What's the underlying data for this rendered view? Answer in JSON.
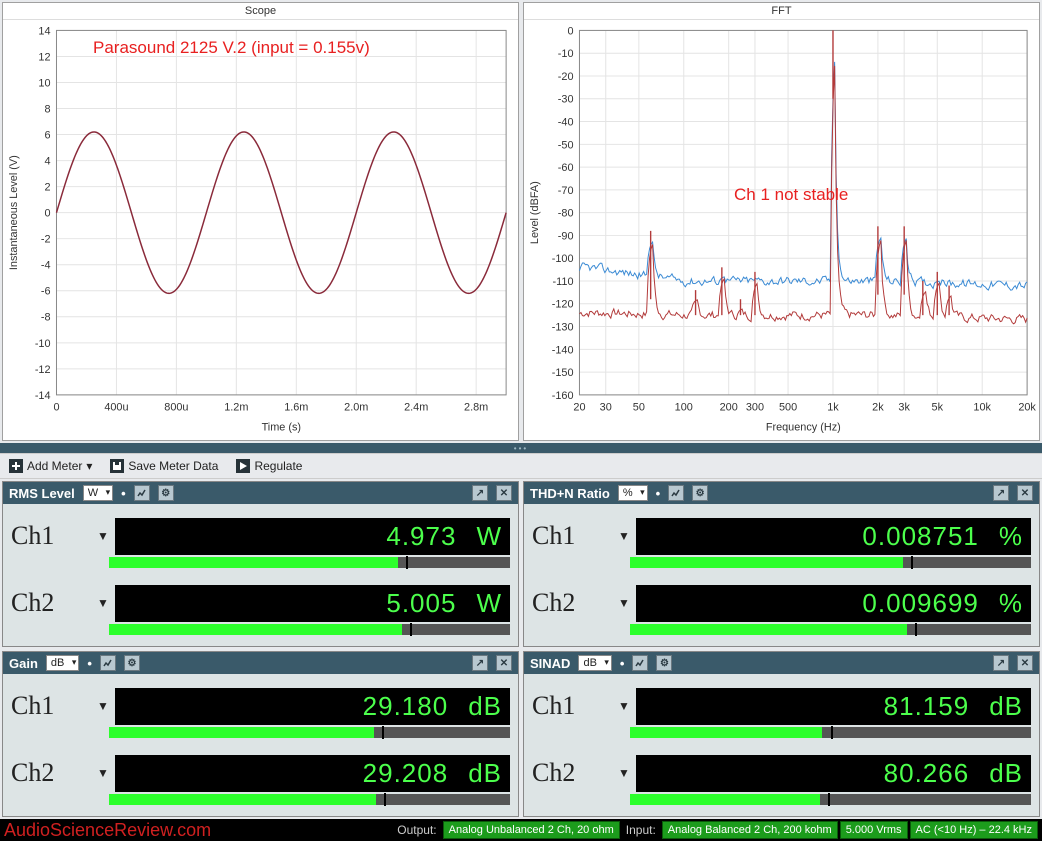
{
  "scope": {
    "title": "Scope",
    "annotation": "Parasound 2125 V.2 (input = 0.155v)",
    "annotation_color": "#e82020",
    "xlabel": "Time (s)",
    "ylabel": "Instantaneous Level (V)",
    "ylim": [
      -14,
      14
    ],
    "ytick_step": 2,
    "xticks": [
      "0",
      "400u",
      "800u",
      "1.2m",
      "1.6m",
      "2.0m",
      "2.4m",
      "2.8m"
    ],
    "xvals": [
      0,
      400,
      800,
      1200,
      1600,
      2000,
      2400,
      2800
    ],
    "wave_color": "#8a2a3a",
    "wave_amp": 6.2,
    "wave_period_us": 1000,
    "background": "#ffffff",
    "grid_color": "#e4e4e4"
  },
  "fft": {
    "title": "FFT",
    "annotation": "Ch 1 not stable",
    "annotation_color": "#e82020",
    "xlabel": "Frequency (Hz)",
    "ylabel": "Level (dBFA)",
    "ylim": [
      -160,
      0
    ],
    "ytick_step": 10,
    "xticks": [
      "20",
      "30",
      "50",
      "100",
      "200",
      "300",
      "500",
      "1k",
      "2k",
      "3k",
      "5k",
      "10k",
      "20k"
    ],
    "xvals": [
      20,
      30,
      50,
      100,
      200,
      300,
      500,
      1000,
      2000,
      3000,
      5000,
      10000,
      20000
    ],
    "series_colors": {
      "ch1": "#3a8ad4",
      "ch2": "#b23a3a"
    },
    "fundamental_hz": 1000,
    "fundamental_db": 0,
    "ch1_floor_db": -110,
    "ch2_floor_db": -125,
    "hum_peaks": [
      {
        "hz": 60,
        "db": -88
      },
      {
        "hz": 120,
        "db": -114
      },
      {
        "hz": 180,
        "db": -104
      },
      {
        "hz": 240,
        "db": -118
      },
      {
        "hz": 300,
        "db": -106
      }
    ],
    "harmonics": [
      {
        "hz": 2000,
        "db": -86
      },
      {
        "hz": 3000,
        "db": -86
      },
      {
        "hz": 4000,
        "db": -110
      },
      {
        "hz": 5000,
        "db": -106
      },
      {
        "hz": 6000,
        "db": -112
      }
    ],
    "background": "#ffffff",
    "grid_color": "#e4e4e4"
  },
  "toolbar": {
    "add_meter": "Add Meter",
    "save_data": "Save Meter Data",
    "regulate": "Regulate"
  },
  "meters": {
    "rms": {
      "title": "RMS Level",
      "unit": "W",
      "ch1_value": "4.973",
      "ch2_value": "5.005",
      "ch1_bar": 0.72,
      "ch2_bar": 0.73
    },
    "thdn": {
      "title": "THD+N Ratio",
      "unit": "%",
      "ch1_value": "0.008751",
      "ch2_value": "0.009699",
      "ch1_bar": 0.68,
      "ch2_bar": 0.69
    },
    "gain": {
      "title": "Gain",
      "unit": "dB",
      "ch1_value": "29.180",
      "ch2_value": "29.208",
      "ch1_bar": 0.66,
      "ch2_bar": 0.665
    },
    "sinad": {
      "title": "SINAD",
      "unit": "dB",
      "ch1_value": "81.159",
      "ch2_value": "80.266",
      "ch1_bar": 0.48,
      "ch2_bar": 0.475
    }
  },
  "footer": {
    "watermark": "AudioScienceReview.com",
    "output_label": "Output:",
    "input_label": "Input:",
    "output_value": "Analog Unbalanced 2 Ch, 20 ohm",
    "input_value": "Analog Balanced 2 Ch, 200 kohm",
    "vrms": "5.000 Vrms",
    "bw": "AC (<10 Hz) – 22.4 kHz"
  },
  "colors": {
    "panel_header": "#3a5a6a",
    "readout_bg": "#000000",
    "readout_fg": "#4cff4c",
    "bar_fill": "#2cff2c",
    "bar_track": "#555555"
  },
  "ch_labels": {
    "ch1": "Ch1",
    "ch2": "Ch2"
  }
}
